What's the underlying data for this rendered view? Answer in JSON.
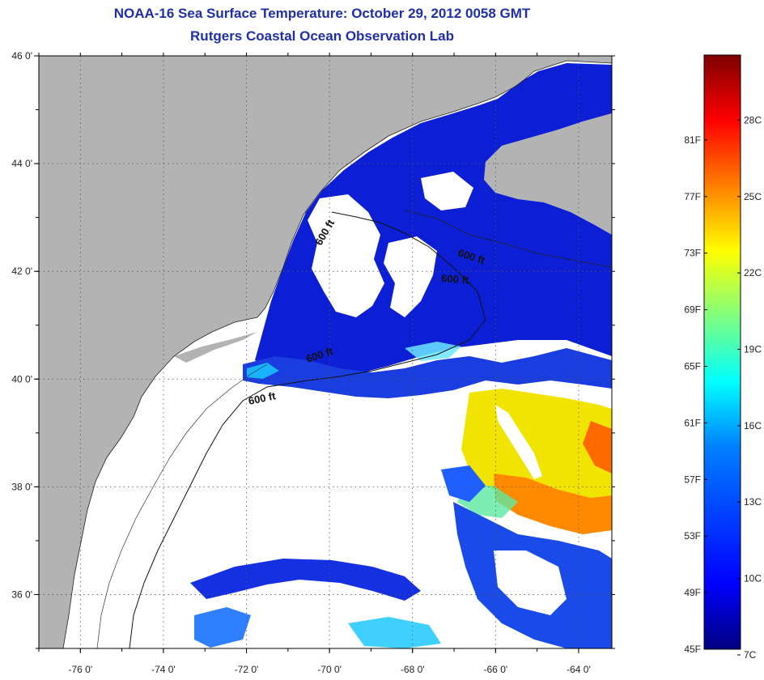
{
  "title": "NOAA-16 Sea Surface Temperature:  October 29, 2012 0058 GMT",
  "subtitle": "Rutgers Coastal Ocean Observation Lab",
  "map": {
    "lon_range": [
      -77,
      -63.2
    ],
    "lat_range": [
      35,
      46
    ],
    "x_ticks": [
      {
        "value": -76,
        "label": "-76 0'"
      },
      {
        "value": -74,
        "label": "-74 0'"
      },
      {
        "value": -72,
        "label": "-72 0'"
      },
      {
        "value": -70,
        "label": "-70 0'"
      },
      {
        "value": -68,
        "label": "-68 0'"
      },
      {
        "value": -66,
        "label": "-66 0'"
      },
      {
        "value": -64,
        "label": "-64 0'"
      }
    ],
    "y_ticks": [
      {
        "value": 46,
        "label": "46 0'"
      },
      {
        "value": 44,
        "label": "44 0'"
      },
      {
        "value": 42,
        "label": "42 0'"
      },
      {
        "value": 40,
        "label": "40 0'"
      },
      {
        "value": 38,
        "label": "38 0'"
      },
      {
        "value": 36,
        "label": "36 0'"
      }
    ],
    "contour_labels": [
      "600 ft",
      "600 ft",
      "600 ft",
      "600 ft",
      "600 ft"
    ],
    "colors": {
      "land": "#b3b3b3",
      "cloud": "#ffffff",
      "grid": "#555555"
    }
  },
  "colorbar": {
    "fahrenheit": [
      "81F",
      "77F",
      "73F",
      "69F",
      "65F",
      "61F",
      "57F",
      "53F",
      "49F",
      "45F"
    ],
    "celsius": [
      "28C",
      "25C",
      "22C",
      "19C",
      "16C",
      "13C",
      "10C",
      "7C"
    ],
    "colors": [
      "#00007f",
      "#0000ff",
      "#007fff",
      "#00ffff",
      "#7fff7f",
      "#ffff00",
      "#ff7f00",
      "#ff0000",
      "#7f0000"
    ]
  }
}
